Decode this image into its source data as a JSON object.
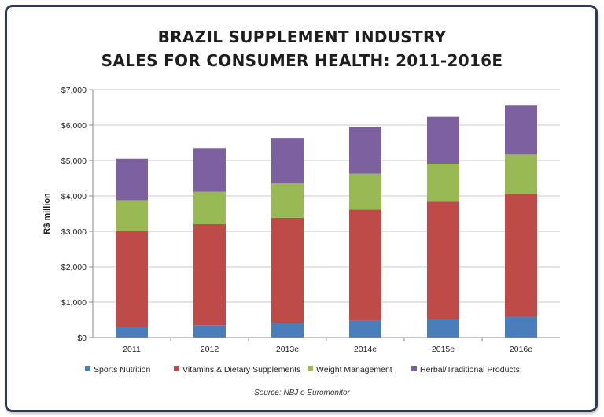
{
  "chart_data": {
    "type": "bar",
    "stacked": true,
    "title_line1": "BRAZIL SUPPLEMENT INDUSTRY",
    "title_line2": "SALES FOR CONSUMER HEALTH: 2011-2016E",
    "ylabel": "R$ million",
    "xlabel": "",
    "ylim": [
      0,
      7000
    ],
    "yticks": [
      "$0",
      "$1,000",
      "$2,000",
      "$3,000",
      "$4,000",
      "$5,000",
      "$6,000",
      "$7,000"
    ],
    "grid": true,
    "legend_position": "bottom",
    "categories": [
      "2011",
      "2012",
      "2013e",
      "2014e",
      "2015e",
      "2016e"
    ],
    "series": [
      {
        "name": "Sports Nutrition",
        "color": "#4a7ebb",
        "values": [
          300,
          350,
          420,
          480,
          530,
          590
        ]
      },
      {
        "name": "Vitamins & Dietary Supplements",
        "color": "#be4b48",
        "values": [
          2700,
          2850,
          2960,
          3130,
          3310,
          3470
        ]
      },
      {
        "name": "Weight Management",
        "color": "#98b954",
        "values": [
          880,
          920,
          970,
          1020,
          1070,
          1110
        ]
      },
      {
        "name": "Herbal/Traditional Products",
        "color": "#7d60a0",
        "values": [
          1170,
          1230,
          1270,
          1310,
          1320,
          1380
        ]
      }
    ],
    "source": "Source: NBJ o Euromonitor"
  }
}
